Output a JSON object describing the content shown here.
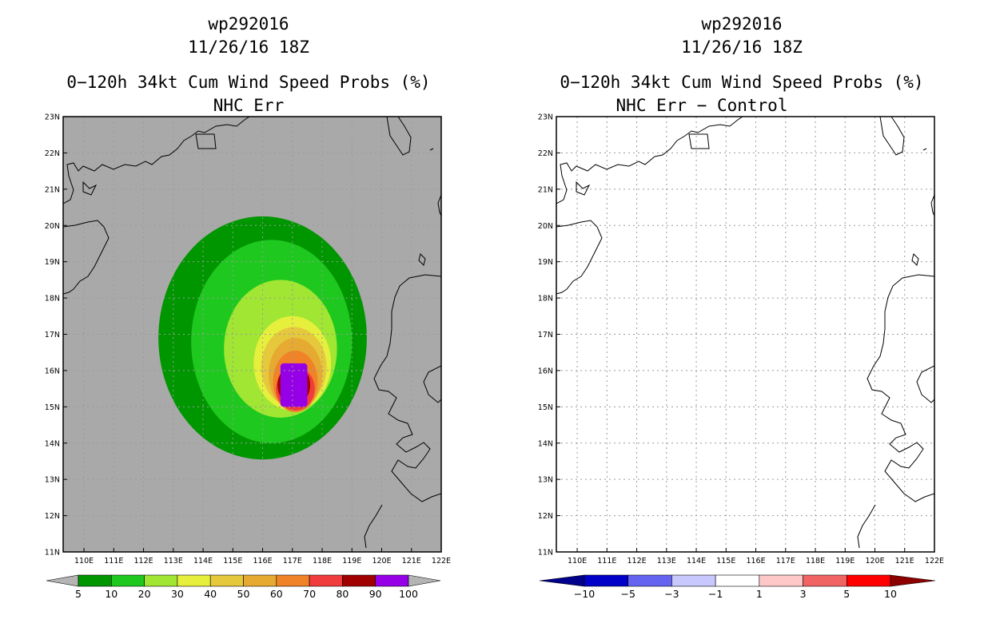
{
  "panels": [
    {
      "storm_id": "wp292016",
      "datetime": "11/26/16 18Z",
      "product": "0−120h 34kt Cum Wind Speed Probs (%)",
      "subtitle": "NHC Err",
      "background": "#a9a9a9"
    },
    {
      "storm_id": "wp292016",
      "datetime": "11/26/16 18Z",
      "product": "0−120h 34kt Cum Wind Speed Probs (%)",
      "subtitle": "NHC Err − Control",
      "background": "#ffffff"
    }
  ],
  "chart_data": [
    {
      "type": "heatmap",
      "title": "0−120h 34kt Cum Wind Speed Probs (%) NHC Err",
      "lon_ticks": [
        "110E",
        "111E",
        "112E",
        "113E",
        "114E",
        "115E",
        "116E",
        "117E",
        "118E",
        "119E",
        "120E",
        "121E",
        "122E"
      ],
      "lat_ticks": [
        "11N",
        "12N",
        "13N",
        "14N",
        "15N",
        "16N",
        "17N",
        "18N",
        "19N",
        "20N",
        "21N",
        "22N",
        "23N"
      ],
      "lon_range": [
        109.3,
        122.0
      ],
      "lat_range": [
        11.0,
        23.0
      ],
      "grid": true,
      "contour_levels": [
        {
          "min": 5,
          "center": [
            116.0,
            16.9
          ],
          "rx": 3.5,
          "ry": 3.35
        },
        {
          "min": 10,
          "center": [
            116.3,
            16.8
          ],
          "rx": 2.7,
          "ry": 2.8
        },
        {
          "min": 20,
          "center": [
            116.6,
            16.6
          ],
          "rx": 1.9,
          "ry": 1.9
        },
        {
          "min": 30,
          "center": [
            117.0,
            16.2
          ],
          "rx": 1.3,
          "ry": 1.3
        },
        {
          "min": 40,
          "center": [
            117.05,
            16.1
          ],
          "rx": 1.1,
          "ry": 1.1
        },
        {
          "min": 50,
          "center": [
            117.1,
            15.9
          ],
          "rx": 0.9,
          "ry": 1.0
        },
        {
          "min": 60,
          "center": [
            117.1,
            15.7
          ],
          "rx": 0.75,
          "ry": 0.85
        },
        {
          "min": 70,
          "center": [
            117.1,
            15.5
          ],
          "rx": 0.65,
          "ry": 0.6
        },
        {
          "min": 80,
          "center": [
            117.05,
            15.6
          ],
          "rx": 0.55,
          "ry": 0.55
        },
        {
          "min": 90,
          "center": [
            117.05,
            15.55
          ],
          "rx": 0.45,
          "ry": 0.5
        }
      ],
      "core_box": {
        "lon": [
          116.6,
          117.5
        ],
        "lat": [
          15.0,
          16.2
        ],
        "value": "90-100"
      },
      "colorbar": {
        "labels": [
          "5",
          "10",
          "20",
          "30",
          "40",
          "50",
          "60",
          "70",
          "80",
          "90",
          "100"
        ],
        "colors": [
          "#009600",
          "#1ec81e",
          "#a0e632",
          "#e6f03c",
          "#e6c83c",
          "#e6aa32",
          "#f08228",
          "#f03c3c",
          "#a00000",
          "#9600e6"
        ],
        "under": "#b4b4b4",
        "over": "#b4b4b4"
      }
    },
    {
      "type": "heatmap",
      "title": "0−120h 34kt Cum Wind Speed Probs (%) NHC Err − Control",
      "lon_ticks": [
        "110E",
        "111E",
        "112E",
        "113E",
        "114E",
        "115E",
        "116E",
        "117E",
        "118E",
        "119E",
        "120E",
        "121E",
        "122E"
      ],
      "lat_ticks": [
        "11N",
        "12N",
        "13N",
        "14N",
        "15N",
        "16N",
        "17N",
        "18N",
        "19N",
        "20N",
        "21N",
        "22N",
        "23N"
      ],
      "lon_range": [
        109.3,
        122.0
      ],
      "lat_range": [
        11.0,
        23.0
      ],
      "grid": true,
      "contour_levels": [],
      "note": "difference field is zero everywhere (all white)",
      "colorbar": {
        "labels": [
          "−10",
          "−5",
          "−3",
          "−1",
          "1",
          "3",
          "5",
          "10"
        ],
        "colors": [
          "#0000c8",
          "#6464f0",
          "#c8c8ff",
          "#ffffff",
          "#ffc8c8",
          "#f06464",
          "#ff0000"
        ],
        "under": "#00008c",
        "over": "#8c0000"
      }
    }
  ]
}
